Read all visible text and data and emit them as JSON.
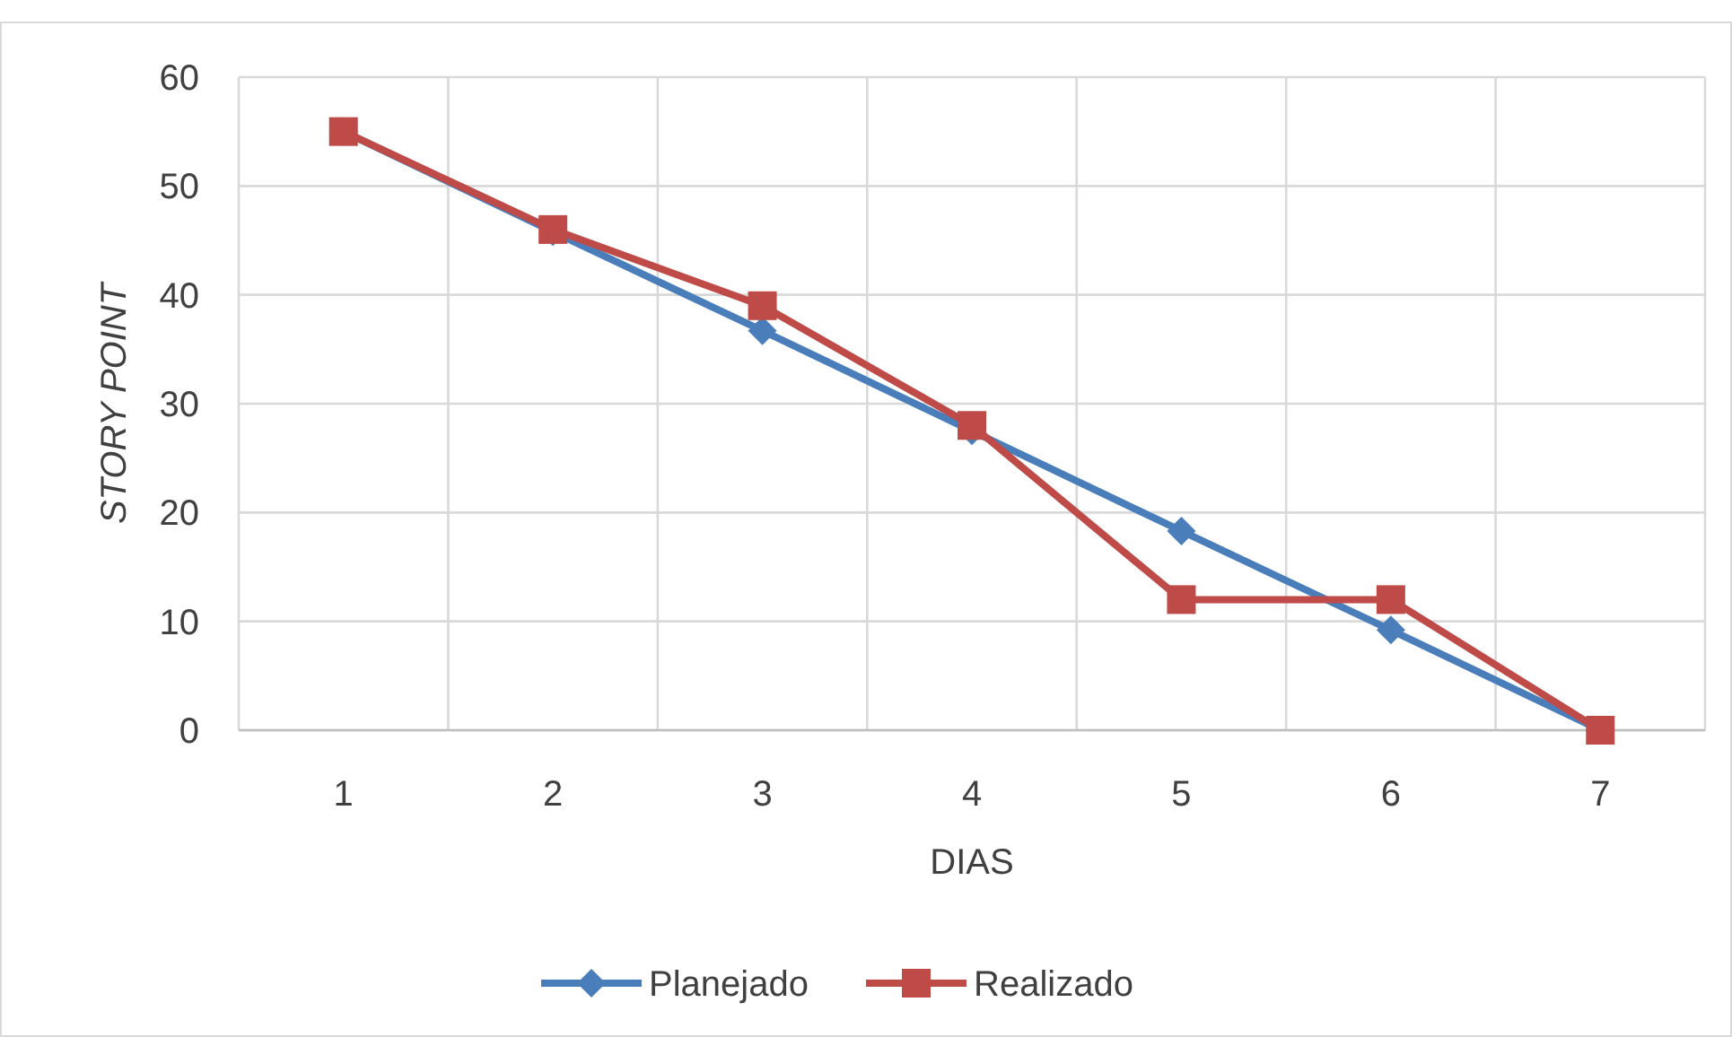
{
  "chart_data": {
    "type": "line",
    "xlabel": "DIAS",
    "ylabel": "STORY POINT",
    "categories": [
      "1",
      "2",
      "3",
      "4",
      "5",
      "6",
      "7"
    ],
    "series": [
      {
        "name": "Planejado",
        "color": "#4a7ebb",
        "marker": "diamond",
        "values": [
          55,
          45.8,
          36.7,
          27.5,
          18.3,
          9.2,
          0
        ]
      },
      {
        "name": "Realizado",
        "color": "#be4b48",
        "marker": "square",
        "values": [
          55,
          46,
          39,
          28,
          12,
          12,
          0
        ]
      }
    ],
    "ylim": [
      0,
      60
    ],
    "yticks": [
      0,
      10,
      20,
      30,
      40,
      50,
      60
    ],
    "grid": true,
    "legend": "bottom",
    "line_style": "solid"
  }
}
